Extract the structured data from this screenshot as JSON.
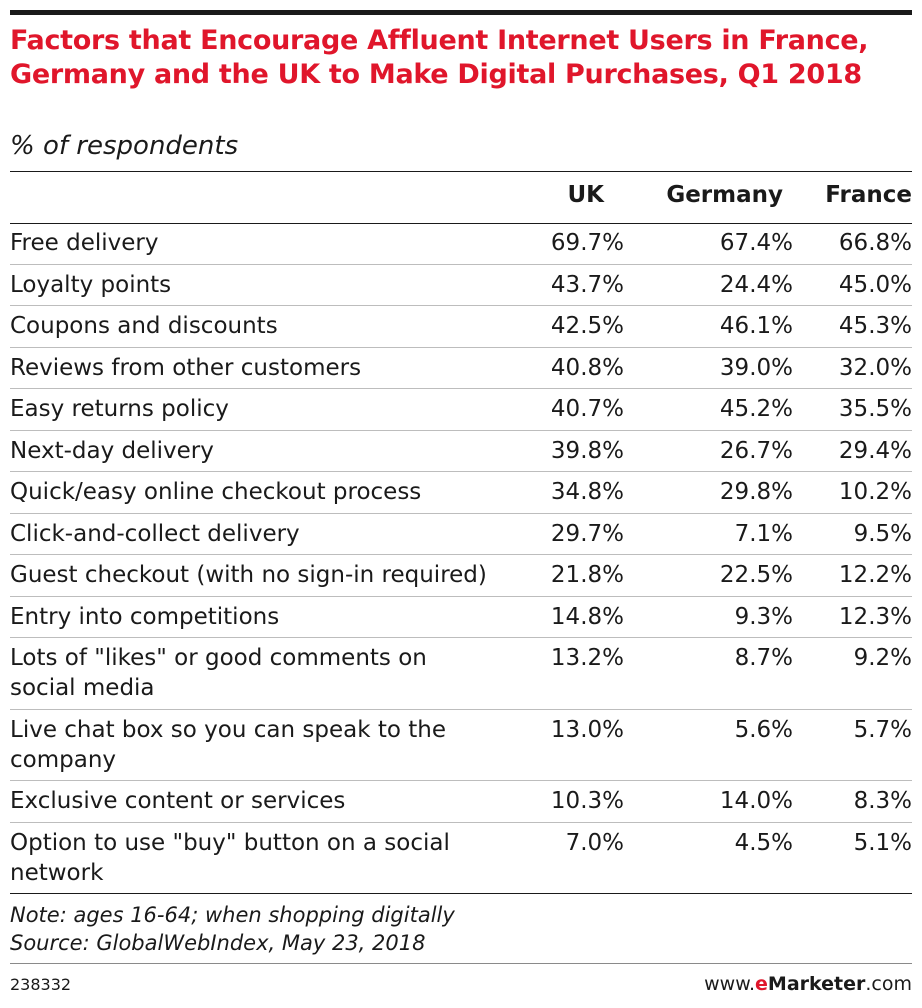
{
  "chart_data": {
    "type": "table",
    "title": "Factors that Encourage Affluent Internet Users in France, Germany and the UK to Make Digital Purchases, Q1 2018",
    "subtitle": "% of respondents",
    "columns": [
      "UK",
      "Germany",
      "France"
    ],
    "rows": [
      {
        "label": "Free delivery",
        "values": [
          "69.7%",
          "67.4%",
          "66.8%"
        ]
      },
      {
        "label": "Loyalty points",
        "values": [
          "43.7%",
          "24.4%",
          "45.0%"
        ]
      },
      {
        "label": "Coupons and discounts",
        "values": [
          "42.5%",
          "46.1%",
          "45.3%"
        ]
      },
      {
        "label": "Reviews from other customers",
        "values": [
          "40.8%",
          "39.0%",
          "32.0%"
        ]
      },
      {
        "label": "Easy returns policy",
        "values": [
          "40.7%",
          "45.2%",
          "35.5%"
        ]
      },
      {
        "label": "Next-day delivery",
        "values": [
          "39.8%",
          "26.7%",
          "29.4%"
        ]
      },
      {
        "label": "Quick/easy online checkout process",
        "values": [
          "34.8%",
          "29.8%",
          "10.2%"
        ]
      },
      {
        "label": "Click-and-collect delivery",
        "values": [
          "29.7%",
          "7.1%",
          "9.5%"
        ]
      },
      {
        "label": "Guest checkout (with no sign-in required)",
        "values": [
          "21.8%",
          "22.5%",
          "12.2%"
        ]
      },
      {
        "label": "Entry into competitions",
        "values": [
          "14.8%",
          "9.3%",
          "12.3%"
        ]
      },
      {
        "label": "Lots of \"likes\" or good comments on social media",
        "values": [
          "13.2%",
          "8.7%",
          "9.2%"
        ]
      },
      {
        "label": "Live chat box so you can speak to the company",
        "values": [
          "13.0%",
          "5.6%",
          "5.7%"
        ]
      },
      {
        "label": "Exclusive content or services",
        "values": [
          "10.3%",
          "14.0%",
          "8.3%"
        ]
      },
      {
        "label": "Option to use \"buy\" button on a social network",
        "values": [
          "7.0%",
          "4.5%",
          "5.1%"
        ]
      }
    ],
    "note": "Note: ages 16-64; when shopping digitally",
    "source": "Source: GlobalWebIndex, May 23, 2018"
  },
  "footer": {
    "chart_id": "238332",
    "brand_prefix": "www.",
    "brand_e": "e",
    "brand_marketer": "Marketer",
    "brand_suffix": ".com"
  },
  "colors": {
    "title": "#e0162b",
    "text": "#1a1a1a",
    "row_divider": "#bdbdbd"
  }
}
